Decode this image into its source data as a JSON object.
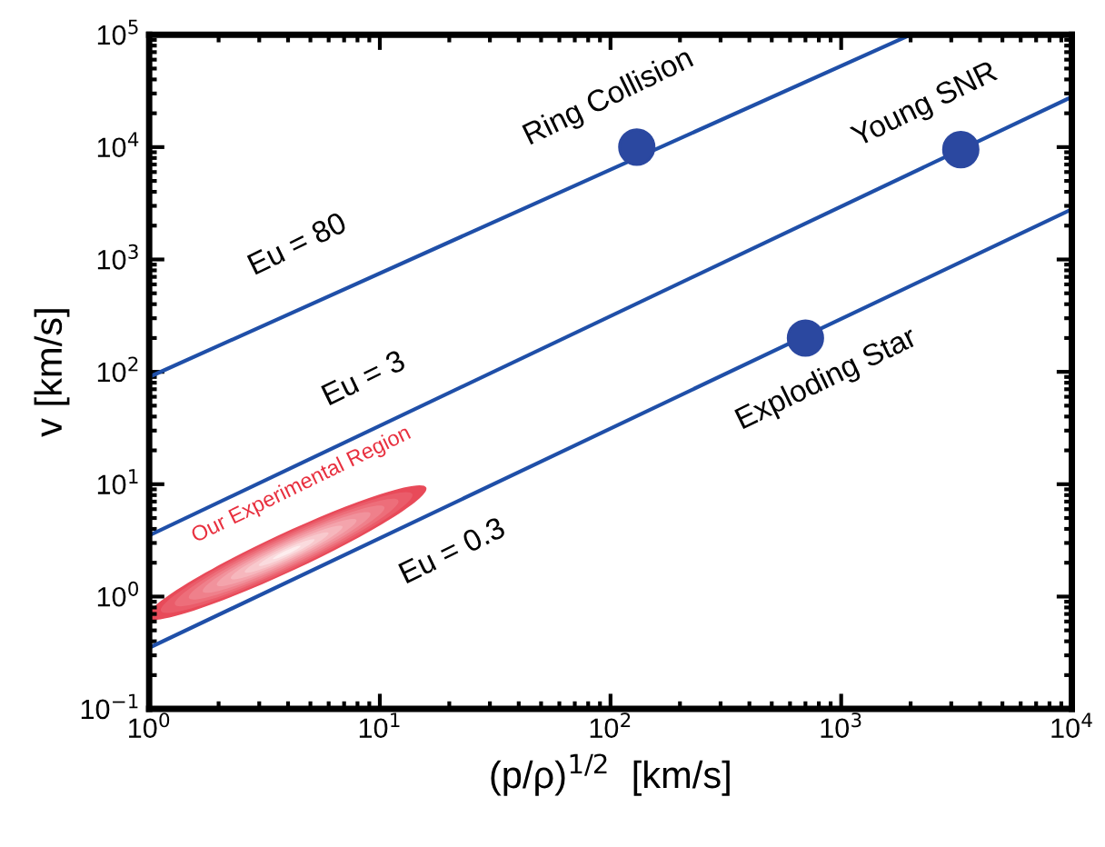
{
  "chart_data": {
    "type": "line",
    "xlabel": "(p/ρ)$^{1/2}$  [km/s]",
    "ylabel": "v [km/s]",
    "series": [
      {
        "color": "#1f4fa8",
        "marker": "none",
        "x": [
          1,
          2000
        ],
        "values": [
          90,
          100000
        ]
      },
      {
        "color": "#1f4fa8",
        "marker": "none",
        "x": [
          1,
          10000
        ],
        "values": [
          3.5,
          28000
        ]
      },
      {
        "color": "#1f4fa8",
        "marker": "none",
        "x": [
          1,
          10000
        ],
        "values": [
          0.35,
          2800
        ]
      },
      {
        "type": "scatter",
        "color": "#2b48a0",
        "x": [
          130,
          3300,
          700
        ],
        "values": [
          10000,
          9500,
          200
        ]
      }
    ],
    "xlim": [
      1,
      10000
    ],
    "ylim": [
      0.1,
      100000
    ],
    "xticks": [
      {
        "value": 1,
        "label": "10$^{0}$"
      },
      {
        "value": 10,
        "label": "10$^{1}$"
      },
      {
        "value": 100,
        "label": "10$^{2}$"
      },
      {
        "value": 1000,
        "label": "10$^{3}$"
      },
      {
        "value": 10000,
        "label": "10$^{4}$"
      }
    ],
    "yticks": [
      {
        "value": 0.1,
        "label": "10$^{−1}$"
      },
      {
        "value": 1,
        "label": "10$^{0}$"
      },
      {
        "value": 10,
        "label": "10$^{1}$"
      },
      {
        "value": 100,
        "label": "10$^{2}$"
      },
      {
        "value": 1000,
        "label": "10$^{3}$"
      },
      {
        "value": 10000,
        "label": "10$^{4}$"
      },
      {
        "value": 100000,
        "label": "10$^{5}$"
      }
    ],
    "log": "xy",
    "grid": false,
    "marker": "circle",
    "line_style": "solid",
    "annotations": [
      "Eu = 80",
      "Ring Collision",
      "Young SNR",
      "Eu = 3",
      "Exploding Star",
      "Eu = 0.3",
      "Our Experimental Region"
    ]
  }
}
